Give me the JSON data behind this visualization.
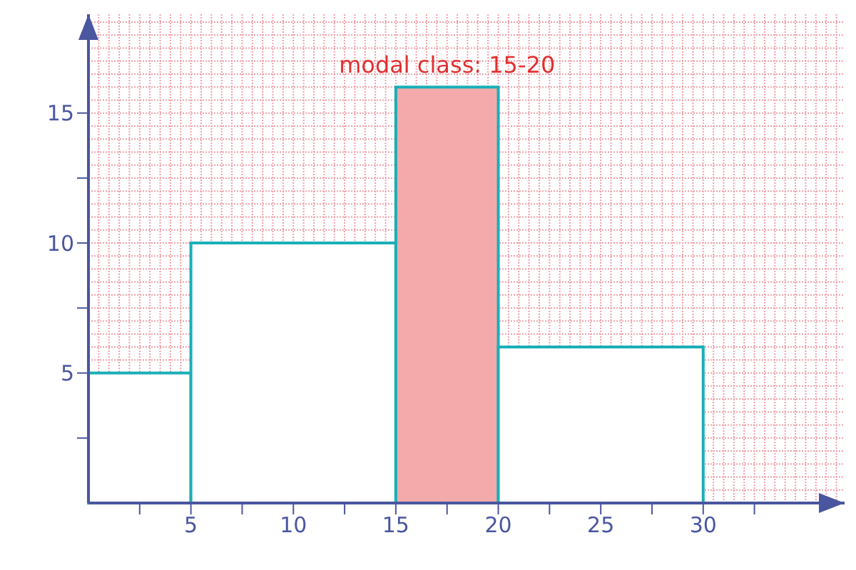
{
  "chart_data": {
    "type": "histogram",
    "bins": [
      0,
      5,
      15,
      20,
      30
    ],
    "values": [
      5,
      10,
      16,
      6
    ],
    "color": "#1aafb8",
    "colors": [
      "#ffffff",
      "#ffffff",
      "#f4aaaa",
      "#ffffff"
    ],
    "annotations": [
      {
        "text": "modal class: 15-20",
        "x": 17.5,
        "y": 16
      }
    ],
    "xlim": [
      0,
      36.9
    ],
    "ylim": [
      0,
      18.8
    ],
    "xticks": [
      {
        "value": 2.5,
        "label": null
      },
      5,
      {
        "value": 7.5,
        "label": null
      },
      10,
      {
        "value": 12.5,
        "label": null
      },
      15,
      {
        "value": 17.5,
        "label": null
      },
      20,
      {
        "value": 22.5,
        "label": null
      },
      25,
      {
        "value": 27.5,
        "label": null
      },
      30,
      {
        "value": 32.5,
        "label": null
      }
    ],
    "yticks": [
      {
        "value": 2.5,
        "label": null
      },
      5,
      {
        "value": 7.5,
        "label": null
      },
      10,
      {
        "value": 12.5,
        "label": null
      },
      15
    ],
    "grid": true
  }
}
